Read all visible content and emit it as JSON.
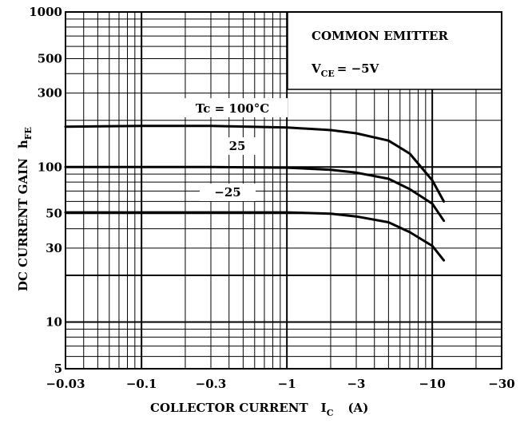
{
  "chart_data": {
    "type": "line",
    "xlabel": "COLLECTOR CURRENT",
    "xlabel_symbol": "I",
    "xlabel_symbol_sub": "C",
    "xlabel_unit": "(A)",
    "ylabel": "DC CURRENT GAIN",
    "ylabel_symbol": "h",
    "ylabel_symbol_sub": "FE",
    "xscale": "log",
    "yscale": "log",
    "xlim": [
      -0.03,
      -30
    ],
    "ylim": [
      5,
      1000
    ],
    "x_ticks": [
      {
        "label": "−0.03",
        "value": 0.03
      },
      {
        "label": "−0.1",
        "value": 0.1
      },
      {
        "label": "−0.3",
        "value": 0.3
      },
      {
        "label": "−1",
        "value": 1
      },
      {
        "label": "−3",
        "value": 3
      },
      {
        "label": "−10",
        "value": 10
      },
      {
        "label": "−30",
        "value": 30
      }
    ],
    "y_ticks": [
      {
        "label": "5",
        "value": 5
      },
      {
        "label": "10",
        "value": 10
      },
      {
        "label": "30",
        "value": 30
      },
      {
        "label": "50",
        "value": 50
      },
      {
        "label": "100",
        "value": 100
      },
      {
        "label": "300",
        "value": 300
      },
      {
        "label": "500",
        "value": 500
      },
      {
        "label": "1000",
        "value": 1000
      }
    ],
    "grid": true,
    "legend": {
      "line1": "COMMON EMITTER",
      "line2_main": "V",
      "line2_sub": "CE",
      "line2_rest": "= −5V",
      "placement": "top-right"
    },
    "series": [
      {
        "name": "Tc = 100°C",
        "x": [
          -0.03,
          -0.1,
          -0.3,
          -1,
          -2,
          -3,
          -5,
          -7,
          -10,
          -12
        ],
        "y": [
          182,
          184,
          184,
          180,
          173,
          165,
          148,
          122,
          82,
          60
        ]
      },
      {
        "name": "25",
        "x": [
          -0.03,
          -0.1,
          -0.3,
          -1,
          -2,
          -3,
          -5,
          -7,
          -10,
          -12
        ],
        "y": [
          100,
          100,
          100,
          99,
          96,
          92,
          84,
          72,
          58,
          45
        ]
      },
      {
        "name": "−25",
        "x": [
          -0.03,
          -0.1,
          -0.3,
          -1,
          -2,
          -3,
          -5,
          -7,
          -10,
          -12
        ],
        "y": [
          51,
          51,
          51,
          51,
          50,
          48,
          44,
          38,
          31,
          25
        ]
      }
    ]
  }
}
